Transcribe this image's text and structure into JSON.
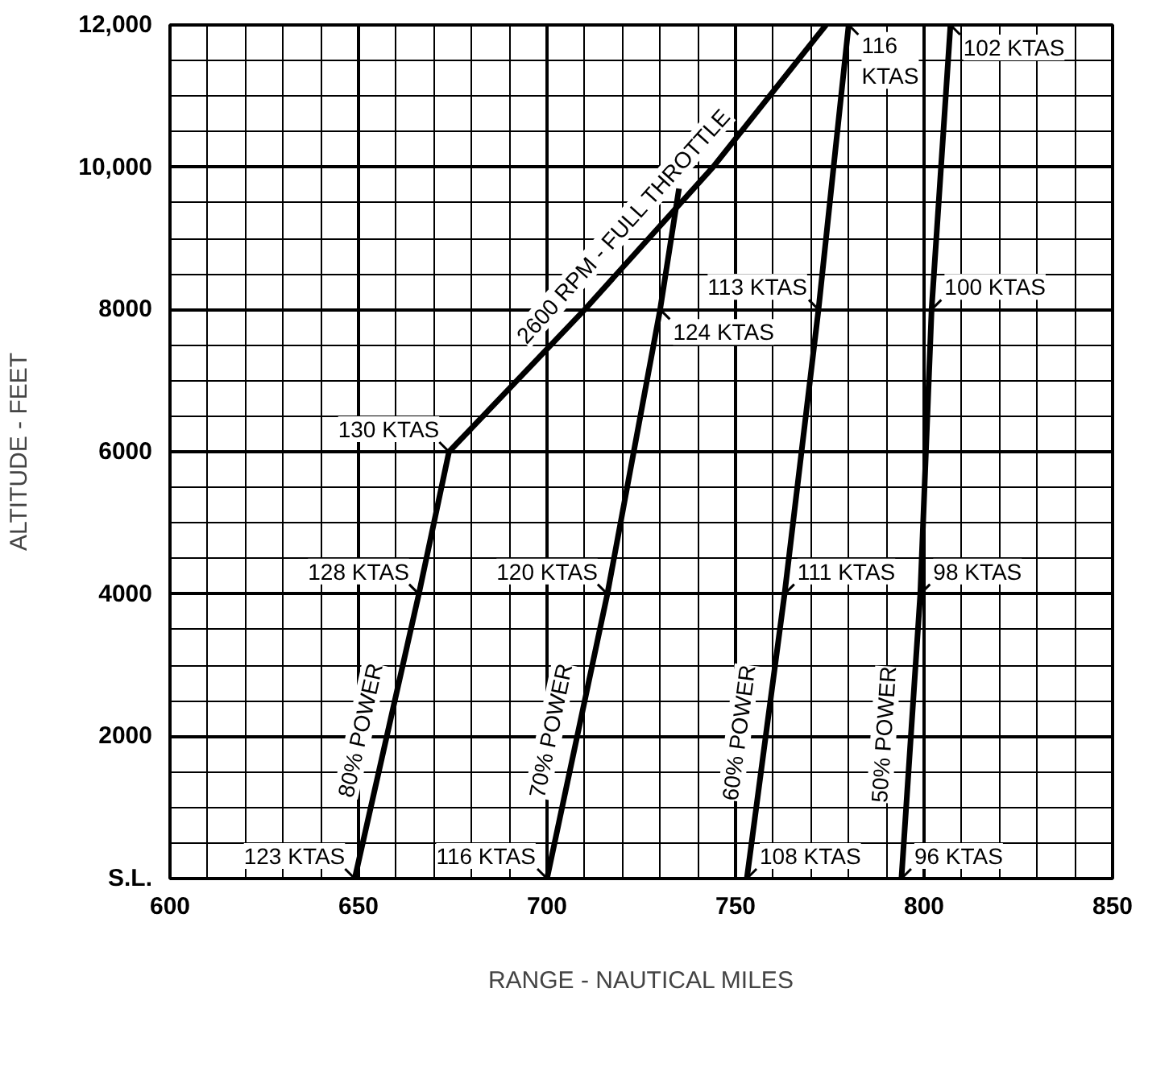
{
  "chart_data": {
    "type": "line",
    "xlabel": "RANGE - NAUTICAL MILES",
    "ylabel": "ALTITUDE - FEET",
    "xlim": [
      600,
      850
    ],
    "ylim": [
      0,
      12000
    ],
    "xticks": [
      600,
      {
        "value": 610,
        "label": null
      },
      {
        "value": 620,
        "label": null
      },
      {
        "value": 630,
        "label": null
      },
      {
        "value": 640,
        "label": null
      },
      650,
      {
        "value": 660,
        "label": null
      },
      {
        "value": 670,
        "label": null
      },
      {
        "value": 680,
        "label": null
      },
      {
        "value": 690,
        "label": null
      },
      700,
      {
        "value": 710,
        "label": null
      },
      {
        "value": 720,
        "label": null
      },
      {
        "value": 730,
        "label": null
      },
      {
        "value": 740,
        "label": null
      },
      750,
      {
        "value": 760,
        "label": null
      },
      {
        "value": 770,
        "label": null
      },
      {
        "value": 780,
        "label": null
      },
      {
        "value": 790,
        "label": null
      },
      800,
      {
        "value": 810,
        "label": null
      },
      {
        "value": 820,
        "label": null
      },
      {
        "value": 830,
        "label": null
      },
      {
        "value": 840,
        "label": null
      },
      850
    ],
    "yticks": [
      {
        "value": 0,
        "label": "S.L."
      },
      {
        "value": 500,
        "label": null
      },
      {
        "value": 1000,
        "label": null
      },
      {
        "value": 1500,
        "label": null
      },
      2000,
      {
        "value": 2500,
        "label": null
      },
      {
        "value": 3000,
        "label": null
      },
      {
        "value": 3500,
        "label": null
      },
      4000,
      {
        "value": 4500,
        "label": null
      },
      {
        "value": 5000,
        "label": null
      },
      {
        "value": 5500,
        "label": null
      },
      6000,
      {
        "value": 6500,
        "label": null
      },
      {
        "value": 7000,
        "label": null
      },
      {
        "value": 7500,
        "label": null
      },
      8000,
      {
        "value": 8500,
        "label": null
      },
      {
        "value": 9000,
        "label": null
      },
      {
        "value": 9500,
        "label": null
      },
      {
        "value": 10000,
        "label": "10,000"
      },
      {
        "value": 10500,
        "label": null
      },
      {
        "value": 11000,
        "label": null
      },
      {
        "value": 11500,
        "label": null
      },
      {
        "value": 12000,
        "label": "12,000"
      }
    ],
    "grid": true,
    "marker": "none",
    "line_style": "solid",
    "series": [
      {
        "name": "80% POWER",
        "color": "#000000",
        "x": [
          649,
          666,
          674
        ],
        "values": [
          0,
          4000,
          6000
        ]
      },
      {
        "name": "70% POWER",
        "color": "#000000",
        "x": [
          700,
          716,
          730,
          735
        ],
        "values": [
          0,
          4000,
          8000,
          9700
        ]
      },
      {
        "name": "60% POWER",
        "color": "#000000",
        "x": [
          753,
          763,
          772,
          780
        ],
        "values": [
          0,
          4000,
          8000,
          12000
        ]
      },
      {
        "name": "50% POWER",
        "color": "#000000",
        "x": [
          794,
          799,
          802,
          807
        ],
        "values": [
          0,
          4000,
          8000,
          12000
        ]
      },
      {
        "name": "2600 RPM - FULL THROTTLE",
        "color": "#000000",
        "x": [
          674,
          710,
          744,
          774
        ],
        "values": [
          6000,
          8000,
          10000,
          12000
        ]
      }
    ],
    "annotations": [
      {
        "text": "123 KTAS",
        "x": 649,
        "y": 0
      },
      {
        "text": "116 KTAS",
        "x": 700,
        "y": 0
      },
      {
        "text": "108 KTAS",
        "x": 753,
        "y": 0
      },
      {
        "text": "96 KTAS",
        "x": 794,
        "y": 0
      },
      {
        "text": "128 KTAS",
        "x": 666,
        "y": 4000
      },
      {
        "text": "120 KTAS",
        "x": 716,
        "y": 4000
      },
      {
        "text": "111 KTAS",
        "x": 763,
        "y": 4000
      },
      {
        "text": "98 KTAS",
        "x": 799,
        "y": 4000
      },
      {
        "text": "130 KTAS",
        "x": 674,
        "y": 6000
      },
      {
        "text": "124 KTAS",
        "x": 730,
        "y": 8000
      },
      {
        "text": "113 KTAS",
        "x": 772,
        "y": 8000
      },
      {
        "text": "100 KTAS",
        "x": 802,
        "y": 8000
      },
      {
        "text": "116 KTAS",
        "x": 780,
        "y": 12000
      },
      {
        "text": "102 KTAS",
        "x": 807,
        "y": 12000
      }
    ]
  }
}
